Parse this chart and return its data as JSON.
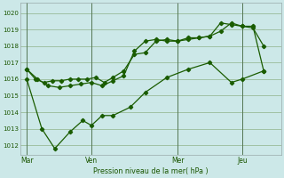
{
  "bg_color": "#cce8e8",
  "grid_color": "#99bb99",
  "line_color": "#1a5c00",
  "marker_color": "#1a5c00",
  "ylabel_ticks": [
    1012,
    1013,
    1014,
    1015,
    1016,
    1017,
    1018,
    1019,
    1020
  ],
  "ylim": [
    1011.4,
    1020.6
  ],
  "xlabel": "Pression niveau de la mer( hPa )",
  "day_labels": [
    "Mar",
    "Ven",
    "Mer",
    "Jeu"
  ],
  "day_positions": [
    0,
    3,
    7,
    10
  ],
  "xlim": [
    -0.3,
    11.8
  ],
  "series1_x": [
    0.0,
    0.4,
    0.8,
    1.2,
    1.6,
    2.0,
    2.4,
    2.8,
    3.2,
    3.6,
    4.0,
    4.5,
    5.0,
    5.5,
    6.0,
    6.5,
    7.0,
    7.5,
    8.0,
    8.5,
    9.0,
    9.5,
    10.0,
    10.5,
    11.0
  ],
  "series1_y": [
    1016.6,
    1016.0,
    1015.8,
    1015.9,
    1015.9,
    1016.0,
    1016.0,
    1016.0,
    1016.1,
    1015.8,
    1016.1,
    1016.5,
    1017.5,
    1017.6,
    1018.3,
    1018.4,
    1018.3,
    1018.4,
    1018.5,
    1018.6,
    1019.4,
    1019.3,
    1019.2,
    1019.1,
    1018.0
  ],
  "series2_x": [
    0.0,
    0.5,
    1.0,
    1.5,
    2.0,
    2.5,
    3.0,
    3.5,
    4.0,
    4.5,
    5.0,
    5.5,
    6.0,
    6.5,
    7.0,
    7.5,
    8.0,
    8.5,
    9.0,
    9.5,
    10.0,
    10.5,
    11.0
  ],
  "series2_y": [
    1016.6,
    1016.0,
    1015.6,
    1015.5,
    1015.6,
    1015.7,
    1015.8,
    1015.6,
    1015.9,
    1016.2,
    1017.7,
    1018.3,
    1018.4,
    1018.3,
    1018.3,
    1018.5,
    1018.5,
    1018.6,
    1018.9,
    1019.4,
    1019.2,
    1019.2,
    1016.5
  ],
  "series3_x": [
    0.0,
    0.7,
    1.3,
    2.0,
    2.6,
    3.0,
    3.5,
    4.0,
    4.8,
    5.5,
    6.5,
    7.5,
    8.5,
    9.5,
    10.0,
    11.0
  ],
  "series3_y": [
    1016.0,
    1013.0,
    1011.8,
    1012.8,
    1013.5,
    1013.2,
    1013.8,
    1013.8,
    1014.3,
    1015.2,
    1016.1,
    1016.6,
    1017.0,
    1015.8,
    1016.0,
    1016.5
  ]
}
